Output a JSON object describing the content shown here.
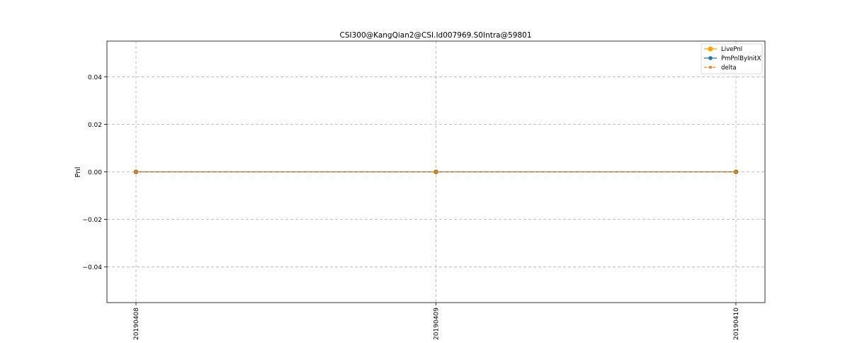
{
  "chart_data": {
    "type": "line",
    "title": "CSI300@KangQian2@CSI.Id007969.S0Intra@59801",
    "xlabel": "",
    "ylabel": "Pnl",
    "categories": [
      "20190408",
      "20190409",
      "20190410"
    ],
    "ylim": [
      -0.055,
      0.055
    ],
    "yticks": [
      -0.04,
      -0.02,
      0.0,
      0.02,
      0.04
    ],
    "ytick_labels": [
      "−0.04",
      "−0.02",
      "0.00",
      "0.02",
      "0.04"
    ],
    "grid": true,
    "legend_position": "top-right",
    "series": [
      {
        "name": "LivePnl",
        "values": [
          0,
          0,
          0
        ],
        "color": "#ffa500",
        "marker": "large-circle",
        "linestyle": "solid"
      },
      {
        "name": "PmPnlByInitX",
        "values": [
          0,
          0,
          0
        ],
        "color": "#1f77b4",
        "marker": "circle",
        "linestyle": "solid"
      },
      {
        "name": "delta",
        "values": [
          0,
          0,
          0
        ],
        "color": "#ff7f0e",
        "marker": "small-circle",
        "linestyle": "dashed"
      }
    ]
  }
}
